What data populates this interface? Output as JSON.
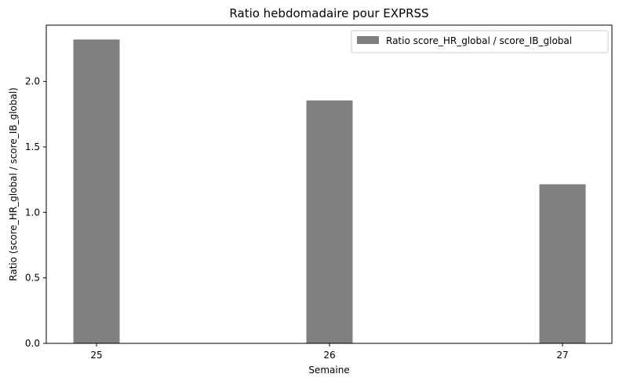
{
  "chart_data": {
    "type": "bar",
    "title": "Ratio hebdomadaire pour EXPRSS",
    "xlabel": "Semaine",
    "ylabel": "Ratio (score_HR_global / score_IB_global)",
    "categories": [
      "25",
      "26",
      "27"
    ],
    "series": [
      {
        "name": "Ratio score_HR_global / score_IB_global",
        "values": [
          2.32,
          1.855,
          1.215
        ],
        "color": "#808080"
      }
    ],
    "ylim": [
      0,
      2.43
    ],
    "yticks": [
      0.0,
      0.5,
      1.0,
      1.5,
      2.0
    ],
    "ytick_labels": [
      "0.0",
      "0.5",
      "1.0",
      "1.5",
      "2.0"
    ],
    "grid": false,
    "legend_position": "top-right"
  }
}
